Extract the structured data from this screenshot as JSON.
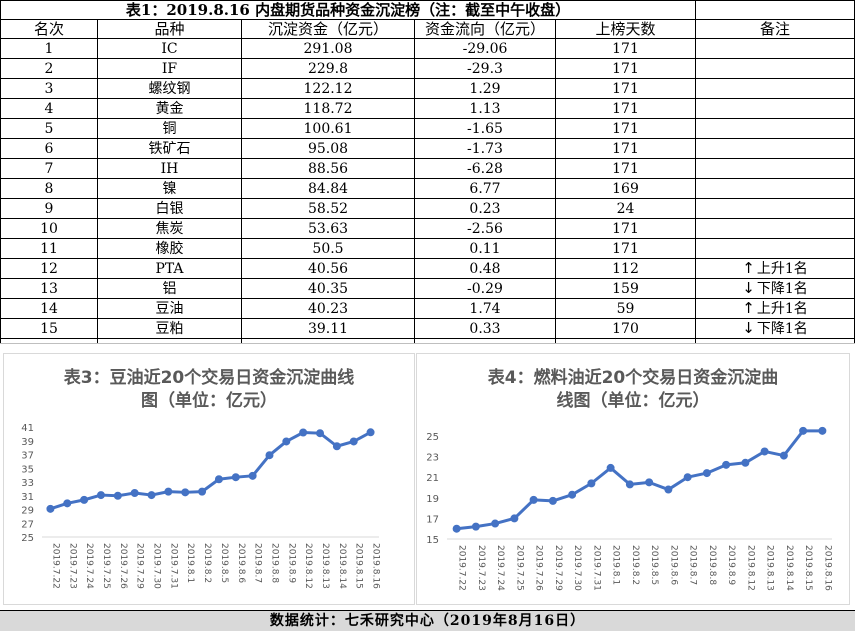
{
  "table": {
    "title": "表1：2019.8.16 内盘期货品种资金沉淀榜（注：截至中午收盘）",
    "headers": [
      "名次",
      "品种",
      "沉淀资金（亿元）",
      "资金流向（亿元）",
      "上榜天数",
      "备注"
    ],
    "rows": [
      {
        "rank": "1",
        "name": "IC",
        "fund": "291.08",
        "flow": "-29.06",
        "days": "171",
        "note_arrow": "",
        "note_text": ""
      },
      {
        "rank": "2",
        "name": "IF",
        "fund": "229.8",
        "flow": "-29.3",
        "days": "171",
        "note_arrow": "",
        "note_text": ""
      },
      {
        "rank": "3",
        "name": "螺纹钢",
        "fund": "122.12",
        "flow": "1.29",
        "days": "171",
        "note_arrow": "",
        "note_text": ""
      },
      {
        "rank": "4",
        "name": "黄金",
        "fund": "118.72",
        "flow": "1.13",
        "days": "171",
        "note_arrow": "",
        "note_text": ""
      },
      {
        "rank": "5",
        "name": "铜",
        "fund": "100.61",
        "flow": "-1.65",
        "days": "171",
        "note_arrow": "",
        "note_text": ""
      },
      {
        "rank": "6",
        "name": "铁矿石",
        "fund": "95.08",
        "flow": "-1.73",
        "days": "171",
        "note_arrow": "",
        "note_text": ""
      },
      {
        "rank": "7",
        "name": "IH",
        "fund": "88.56",
        "flow": "-6.28",
        "days": "171",
        "note_arrow": "",
        "note_text": ""
      },
      {
        "rank": "8",
        "name": "镍",
        "fund": "84.84",
        "flow": "6.77",
        "days": "169",
        "note_arrow": "",
        "note_text": ""
      },
      {
        "rank": "9",
        "name": "白银",
        "fund": "58.52",
        "flow": "0.23",
        "days": "24",
        "note_arrow": "",
        "note_text": ""
      },
      {
        "rank": "10",
        "name": "焦炭",
        "fund": "53.63",
        "flow": "-2.56",
        "days": "171",
        "note_arrow": "",
        "note_text": ""
      },
      {
        "rank": "11",
        "name": "橡胶",
        "fund": "50.5",
        "flow": "0.11",
        "days": "171",
        "note_arrow": "",
        "note_text": ""
      },
      {
        "rank": "12",
        "name": "PTA",
        "fund": "40.56",
        "flow": "0.48",
        "days": "112",
        "note_arrow": "↑",
        "note_text": "上升1名"
      },
      {
        "rank": "13",
        "name": "铝",
        "fund": "40.35",
        "flow": "-0.29",
        "days": "159",
        "note_arrow": "↓",
        "note_text": "下降1名"
      },
      {
        "rank": "14",
        "name": "豆油",
        "fund": "40.23",
        "flow": "1.74",
        "days": "59",
        "note_arrow": "↑",
        "note_text": "上升1名"
      },
      {
        "rank": "15",
        "name": "豆粕",
        "fund": "39.11",
        "flow": "0.33",
        "days": "170",
        "note_arrow": "↓",
        "note_text": "下降1名"
      }
    ]
  },
  "footer": "数据统计：七禾研究中心（2019年8月16日）",
  "chart_data": [
    {
      "type": "line",
      "title_line1": "表3：豆油近20个交易日资金沉淀曲线",
      "title_line2": "图（单位：亿元）",
      "categories": [
        "2019.7.22",
        "2019.7.23",
        "2019.7.24",
        "2019.7.25",
        "2019.7.26",
        "2019.7.29",
        "2019.7.30",
        "2019.7.31",
        "2019.8.1",
        "2019.8.2",
        "2019.8.5",
        "2019.8.6",
        "2019.8.7",
        "2019.8.8",
        "2019.8.9",
        "2019.8.12",
        "2019.8.13",
        "2019.8.14",
        "2019.8.15",
        "2019.8.16"
      ],
      "values": [
        29.1,
        29.9,
        30.4,
        31.1,
        31.0,
        31.4,
        31.1,
        31.6,
        31.5,
        31.6,
        33.4,
        33.7,
        33.9,
        36.9,
        38.9,
        40.2,
        40.1,
        38.2,
        38.9,
        40.23
      ],
      "ylim": [
        25,
        41
      ],
      "yticks": [
        "41",
        "39",
        "37",
        "35",
        "33",
        "31",
        "29",
        "27",
        "25"
      ],
      "color": "#4472c4"
    },
    {
      "type": "line",
      "title_line1": "表4：燃料油近20个交易日资金沉淀曲",
      "title_line2": "线图（单位：亿元）",
      "categories": [
        "2019.7.22",
        "2019.7.23",
        "2019.7.24",
        "2019.7.25",
        "2019.7.26",
        "2019.7.29",
        "2019.7.30",
        "2019.7.31",
        "2019.8.1",
        "2019.8.2",
        "2019.8.5",
        "2019.8.6",
        "2019.8.7",
        "2019.8.8",
        "2019.8.9",
        "2019.8.12",
        "2019.8.13",
        "2019.8.14",
        "2019.8.15",
        "2019.8.16"
      ],
      "values": [
        16.0,
        16.2,
        16.5,
        17.0,
        18.8,
        18.7,
        19.3,
        20.4,
        21.9,
        20.3,
        20.5,
        19.8,
        21.0,
        21.4,
        22.2,
        22.4,
        23.5,
        23.1,
        25.5,
        25.5
      ],
      "ylim": [
        15,
        25
      ],
      "yticks": [
        "25",
        "23",
        "21",
        "19",
        "17",
        "15"
      ],
      "color": "#4472c4"
    }
  ]
}
